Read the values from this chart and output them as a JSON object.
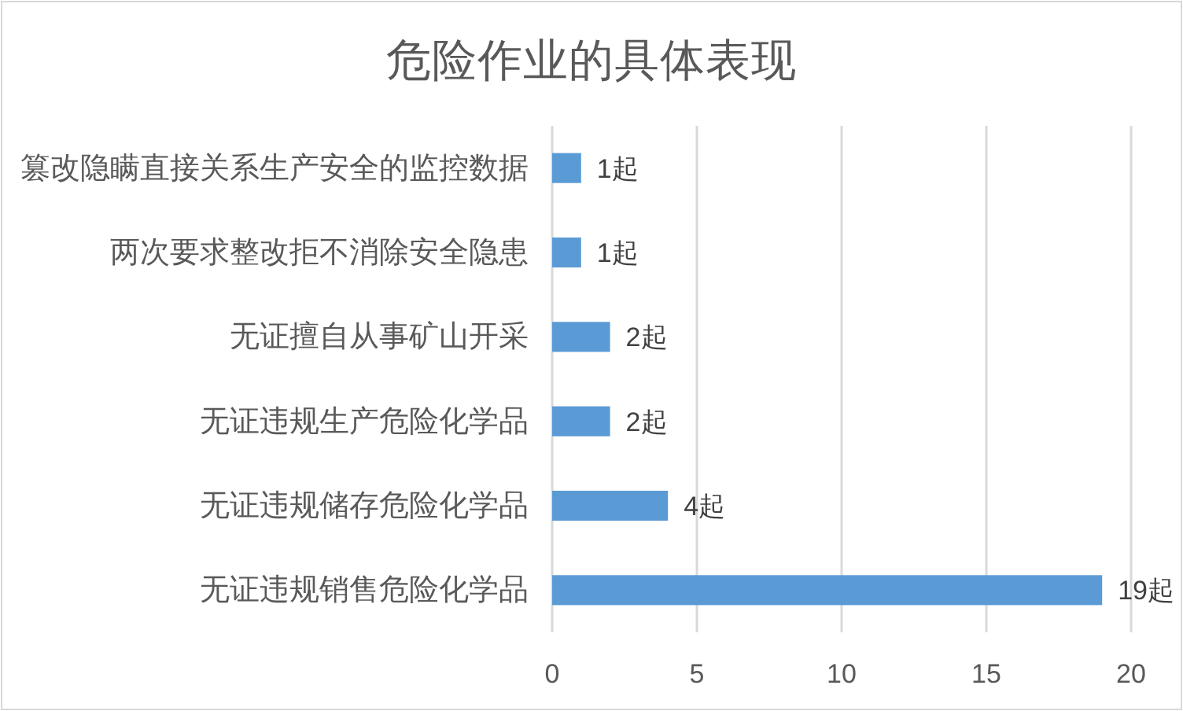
{
  "chart_data": {
    "type": "bar",
    "orientation": "horizontal",
    "title": "危险作业的具体表现",
    "categories": [
      "篡改隐瞒直接关系生产安全的监控数据",
      "两次要求整改拒不消除安全隐患",
      "无证擅自从事矿山开采",
      "无证违规生产危险化学品",
      "无证违规储存危险化学品",
      "无证违规销售危险化学品"
    ],
    "values": [
      1,
      1,
      2,
      2,
      4,
      19
    ],
    "color": "#5b9bd5",
    "value_labels": [
      "1起",
      "1起",
      "2起",
      "2起",
      "4起",
      "19起"
    ],
    "xlim": [
      0,
      20
    ],
    "xticks": [
      0,
      5,
      10,
      15,
      20
    ],
    "grid": "x"
  }
}
